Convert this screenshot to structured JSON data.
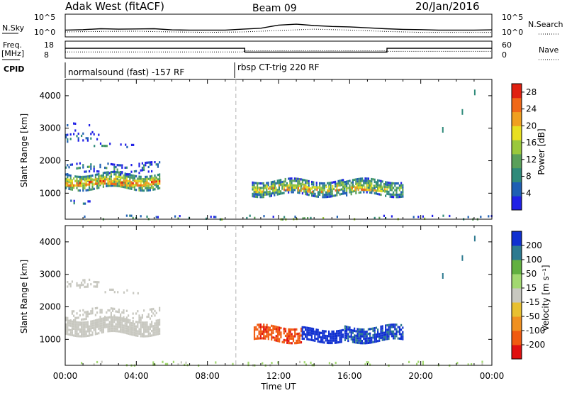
{
  "header": {
    "station": "Adak West (fitACF)",
    "beam": "Beam 09",
    "date": "20/Jan/2016"
  },
  "side_labels": {
    "nsky": "N.Sky",
    "nsearch": "N.Search",
    "freq_line1": "Freq.",
    "freq_line2": "[MHz]",
    "nave": "Nave",
    "cpid": "CPID"
  },
  "cpid_segments": [
    "normalsound (fast) -157 RF",
    "rbsp CT-trig 220 RF"
  ],
  "colors": {
    "power": [
      "#2020e6",
      "#1f5fb4",
      "#2f8a7a",
      "#5aa05a",
      "#9ac83c",
      "#e8e020",
      "#f0a020",
      "#f06818",
      "#e02010"
    ],
    "velocity_pos": [
      "#1030d0",
      "#2d7a90",
      "#62b040",
      "#a2d870"
    ],
    "velocity_neutral": "#c8c8c0",
    "velocity_neg": [
      "#e8c030",
      "#f09020",
      "#f05a10",
      "#e01010"
    ],
    "ground": "#c8c8c0",
    "gridline": "#b4b4b4"
  },
  "chart_data": [
    {
      "type": "line",
      "name": "noise-panel",
      "ylabel_left": "N.Sky",
      "ylabel_right": "N.Search",
      "yticks_left": [
        "10^5",
        "10^0"
      ],
      "yticks_right": [
        "10^5",
        "10^0"
      ],
      "log_scale": true,
      "xlim": [
        0,
        24
      ],
      "series": [
        {
          "key": "nsky",
          "style": "solid",
          "x": [
            0,
            1,
            2,
            3,
            4,
            5,
            6,
            7,
            8,
            9,
            10,
            11,
            12,
            13,
            14,
            15,
            16,
            17,
            18,
            19,
            20,
            21,
            22,
            23,
            24
          ],
          "y": [
            0.3,
            0.32,
            0.36,
            0.34,
            0.35,
            0.36,
            0.31,
            0.3,
            0.3,
            0.3,
            0.34,
            0.38,
            0.52,
            0.56,
            0.5,
            0.46,
            0.44,
            0.4,
            0.36,
            0.33,
            0.32,
            0.3,
            0.3,
            0.3,
            0.31
          ]
        },
        {
          "key": "nsearch",
          "style": "dotted",
          "x": [
            0,
            2,
            4,
            6,
            8,
            10,
            12,
            14,
            16,
            18,
            20,
            22,
            24
          ],
          "y": [
            0.22,
            0.24,
            0.25,
            0.22,
            0.2,
            0.22,
            0.28,
            0.34,
            0.3,
            0.24,
            0.2,
            0.2,
            0.2
          ]
        }
      ]
    },
    {
      "type": "line",
      "name": "frequency-panel",
      "ylabel_left": "Freq. [MHz]",
      "ylabel_right": "Nave",
      "yticks_left": [
        "18",
        "8"
      ],
      "yticks_right": [
        "60",
        "0"
      ],
      "xlim": [
        0,
        24
      ],
      "series": [
        {
          "key": "freq",
          "style": "solid",
          "unit": "MHz",
          "x": [
            0,
            0.1,
            10.1,
            10.1,
            18.1,
            18.1,
            24
          ],
          "y": [
            13.8,
            13.8,
            13.8,
            11.6,
            11.6,
            13.8,
            13.8
          ]
        },
        {
          "key": "nave",
          "style": "dotted",
          "x": [
            0,
            2,
            4,
            6,
            8,
            10,
            10.1,
            12,
            14,
            16,
            18,
            18.1,
            20,
            22,
            24
          ],
          "y": [
            22,
            22,
            22,
            22,
            22,
            22,
            26,
            26,
            26,
            26,
            26,
            24,
            24,
            24,
            24
          ]
        }
      ],
      "cpid_switch_hour": 9.6
    },
    {
      "type": "heatmap",
      "name": "power-panel",
      "title": "",
      "xlabel": "",
      "ylabel": "Slant Range [km]",
      "colorbar_label": "Power [dB]",
      "colorbar_ticks": [
        4,
        8,
        12,
        16,
        20,
        24,
        28
      ],
      "clim": [
        0,
        30
      ],
      "xlim": [
        0,
        24
      ],
      "ylim": [
        200,
        4500
      ],
      "yticks": [
        1000,
        2000,
        3000,
        4000
      ],
      "regions": [
        {
          "x0": 0.0,
          "x1": 5.3,
          "yc": 1400,
          "ht": 420,
          "v": 17,
          "dens": 0.75
        },
        {
          "x0": 0.0,
          "x1": 5.3,
          "yc": 1350,
          "ht": 180,
          "v": 26,
          "dens": 0.55
        },
        {
          "x0": 0.0,
          "x1": 5.3,
          "yc": 1800,
          "ht": 280,
          "v": 9,
          "dens": 0.3
        },
        {
          "x0": 0.0,
          "x1": 1.9,
          "yc": 2720,
          "ht": 220,
          "v": 8,
          "dens": 0.28
        },
        {
          "x0": 1.6,
          "x1": 4.3,
          "yc": 2480,
          "ht": 120,
          "v": 8,
          "dens": 0.14
        },
        {
          "x0": 0.0,
          "x1": 1.8,
          "yc": 3050,
          "ht": 220,
          "v": 6,
          "dens": 0.07
        },
        {
          "x0": 0.2,
          "x1": 1.6,
          "yc": 750,
          "ht": 100,
          "v": 8,
          "dens": 0.12
        },
        {
          "x0": 10.5,
          "x1": 15.7,
          "yc": 1200,
          "ht": 420,
          "v": 14,
          "dens": 0.75
        },
        {
          "x0": 10.7,
          "x1": 15.4,
          "yc": 1150,
          "ht": 200,
          "v": 24,
          "dens": 0.45
        },
        {
          "x0": 15.7,
          "x1": 19.0,
          "yc": 1200,
          "ht": 420,
          "v": 14,
          "dens": 0.7
        },
        {
          "x0": 16.1,
          "x1": 18.0,
          "yc": 1150,
          "ht": 200,
          "v": 24,
          "dens": 0.45
        },
        {
          "x0": 0.0,
          "x1": 24.0,
          "yc": 260,
          "ht": 120,
          "v": 13,
          "dens": 0.14
        }
      ],
      "tracks": [
        {
          "x": [
            21.2,
            22.3,
            23.0
          ],
          "y": [
            2950,
            3500,
            4100
          ],
          "v": 9
        }
      ]
    },
    {
      "type": "heatmap",
      "name": "velocity-panel",
      "title": "",
      "xlabel": "Time UT",
      "ylabel": "Slant Range [km]",
      "colorbar_label": "Velocity [m s⁻¹]",
      "colorbar_ticks": [
        -200,
        -100,
        -50,
        -15,
        15,
        50,
        100,
        200
      ],
      "clim": [
        -250,
        250
      ],
      "xlim": [
        0,
        24
      ],
      "ylim": [
        200,
        4500
      ],
      "yticks": [
        1000,
        2000,
        3000,
        4000
      ],
      "xticks": [
        "00:00",
        "04:00",
        "08:00",
        "12:00",
        "16:00",
        "20:00",
        "00:00"
      ],
      "regions": [
        {
          "x0": 0.0,
          "x1": 5.3,
          "yc": 1400,
          "ht": 460,
          "v": 0,
          "dens": 0.85,
          "ground": true
        },
        {
          "x0": 0.0,
          "x1": 5.3,
          "yc": 1800,
          "ht": 300,
          "v": 0,
          "dens": 0.35,
          "ground": true
        },
        {
          "x0": 0.0,
          "x1": 1.9,
          "yc": 2720,
          "ht": 220,
          "v": 0,
          "dens": 0.35,
          "ground": true
        },
        {
          "x0": 1.6,
          "x1": 4.3,
          "yc": 2480,
          "ht": 120,
          "v": 0,
          "dens": 0.18,
          "ground": true
        },
        {
          "x0": 10.6,
          "x1": 13.3,
          "yc": 1200,
          "ht": 420,
          "v": -190,
          "dens": 0.78
        },
        {
          "x0": 13.3,
          "x1": 15.6,
          "yc": 1150,
          "ht": 380,
          "v": 220,
          "dens": 0.8
        },
        {
          "x0": 15.7,
          "x1": 19.0,
          "yc": 1200,
          "ht": 420,
          "v": 210,
          "dens": 0.78
        },
        {
          "x0": 0.0,
          "x1": 24.0,
          "yc": 260,
          "ht": 120,
          "v": 30,
          "dens": 0.14
        }
      ],
      "tracks": [
        {
          "x": [
            21.2,
            22.3,
            23.0
          ],
          "y": [
            2950,
            3500,
            4100
          ],
          "v": 200
        }
      ]
    }
  ]
}
